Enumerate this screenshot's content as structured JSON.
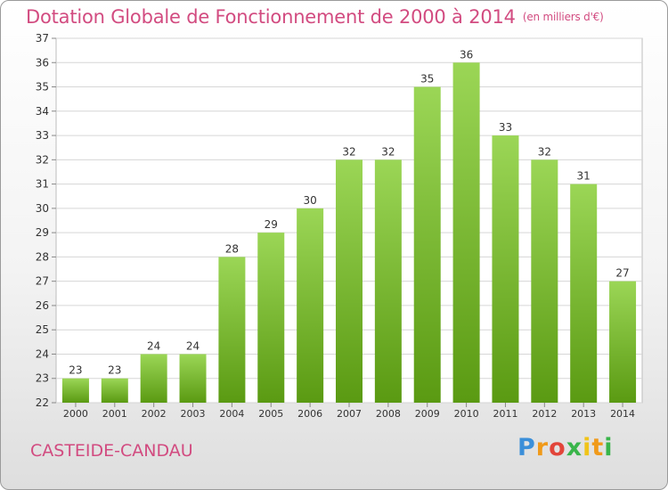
{
  "header": {
    "title": "Dotation Globale de Fonctionnement de 2000 à 2014",
    "unit": "(en milliers d'€)"
  },
  "footer": {
    "commune": "CASTEIDE-CANDAU",
    "logo": "Proxiti"
  },
  "colors": {
    "accent": "#d24b80",
    "bar_top": "#9bd656",
    "bar_bottom": "#5a9a12"
  },
  "chart_data": {
    "type": "bar",
    "categories": [
      "2000",
      "2001",
      "2002",
      "2003",
      "2004",
      "2005",
      "2006",
      "2007",
      "2008",
      "2009",
      "2010",
      "2011",
      "2012",
      "2013",
      "2014"
    ],
    "values": [
      23,
      23,
      24,
      24,
      28,
      29,
      30,
      32,
      32,
      35,
      36,
      33,
      32,
      31,
      27
    ],
    "title": "Dotation Globale de Fonctionnement de 2000 à 2014",
    "subtitle": "(en milliers d'€)",
    "xlabel": "",
    "ylabel": "",
    "ylim": [
      22,
      37
    ],
    "yticks": [
      22,
      23,
      24,
      25,
      26,
      27,
      28,
      29,
      30,
      31,
      32,
      33,
      34,
      35,
      36,
      37
    ],
    "grid": true,
    "legend": "none",
    "data_labels": true
  }
}
